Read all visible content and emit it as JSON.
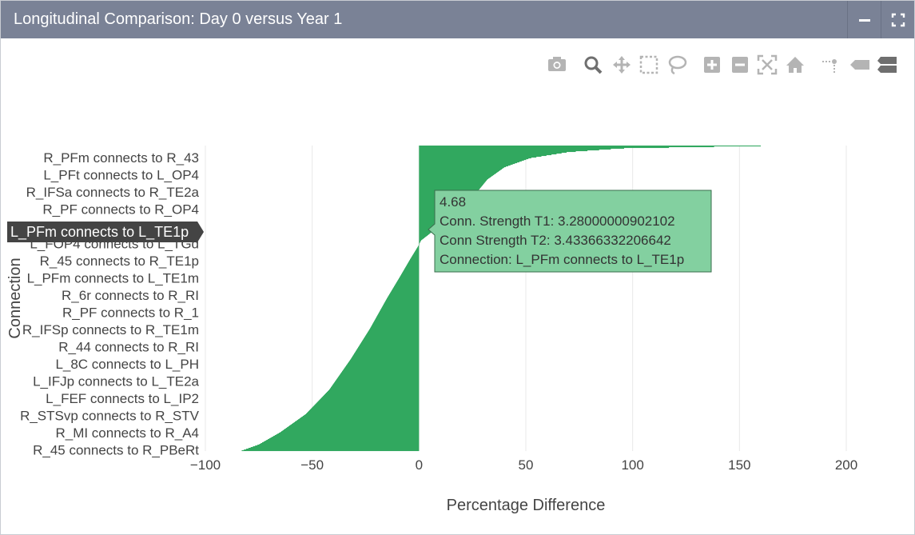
{
  "window": {
    "title": "Longitudinal Comparison: Day 0 versus Year 1",
    "minimize_icon": "minus-icon",
    "maximize_icon": "expand-icon"
  },
  "modebar": [
    {
      "name": "camera-icon",
      "label": "Download plot as a png"
    },
    {
      "name": "zoom-icon",
      "label": "Zoom"
    },
    {
      "name": "pan-icon",
      "label": "Pan"
    },
    {
      "name": "box-select-icon",
      "label": "Box Select"
    },
    {
      "name": "lasso-select-icon",
      "label": "Lasso Select"
    },
    {
      "name": "zoom-in-icon",
      "label": "Zoom in"
    },
    {
      "name": "zoom-out-icon",
      "label": "Zoom out"
    },
    {
      "name": "autoscale-icon",
      "label": "Autoscale"
    },
    {
      "name": "reset-axes-icon",
      "label": "Reset axes"
    },
    {
      "name": "spike-lines-icon",
      "label": "Toggle Spike Lines"
    },
    {
      "name": "hover-closest-icon",
      "label": "Show closest data on hover"
    },
    {
      "name": "hover-compare-icon",
      "label": "Compare data on hover"
    }
  ],
  "chart_data": {
    "type": "bar",
    "orientation": "horizontal",
    "title": "",
    "xlabel": "Percentage Difference",
    "ylabel": "Connection",
    "xlim": [
      -100,
      200
    ],
    "xticks": [
      -100,
      -50,
      0,
      50,
      100,
      150,
      200
    ],
    "xtick_labels": [
      "−100",
      "−50",
      "0",
      "50",
      "100",
      "150",
      "200"
    ],
    "grid": true,
    "bar_color": "#31a85f",
    "ytick_labels": [
      "R_PFm connects to R_43",
      "L_PFt connects to L_OP4",
      "R_IFSa connects to R_TE2a",
      "R_PF connects to R_OP4",
      "L_PFm connects to L_TE1p",
      "L_FOP4 connects to L_TGd",
      "R_45 connects to R_TE1p",
      "L_PFm connects to L_TE1m",
      "R_6r connects to R_RI",
      "R_PF connects to R_1",
      "R_IFSp connects to R_TE1m",
      "R_44 connects to R_RI",
      "L_8C connects to L_PH",
      "L_IFJp connects to L_TE2a",
      "L_FEF connects to L_IP2",
      "R_STSvp connects to R_STV",
      "R_MI connects to R_A4",
      "R_45 connects to R_PBeRt"
    ],
    "sorted_values_profile": [
      [
        0.0,
        160
      ],
      [
        0.003,
        135
      ],
      [
        0.008,
        95
      ],
      [
        0.02,
        70
      ],
      [
        0.04,
        52
      ],
      [
        0.07,
        40
      ],
      [
        0.11,
        32
      ],
      [
        0.17,
        25
      ],
      [
        0.21,
        18
      ],
      [
        0.25,
        12
      ],
      [
        0.27,
        8
      ],
      [
        0.29,
        4.68
      ],
      [
        0.31,
        1
      ],
      [
        0.33,
        -0.5
      ],
      [
        0.37,
        -4
      ],
      [
        0.43,
        -9
      ],
      [
        0.5,
        -15
      ],
      [
        0.6,
        -23
      ],
      [
        0.7,
        -32
      ],
      [
        0.8,
        -42
      ],
      [
        0.88,
        -53
      ],
      [
        0.94,
        -65
      ],
      [
        0.98,
        -75
      ],
      [
        1.0,
        -83
      ]
    ],
    "hover": {
      "value": "4.68",
      "lines": [
        "Conn. Strength T1: 3.28000000902102",
        "Conn Strength T2: 3.43366332206642",
        "Connection: L_PFm connects to L_TE1p"
      ],
      "category": "L_PFm connects to L_TE1p"
    }
  }
}
